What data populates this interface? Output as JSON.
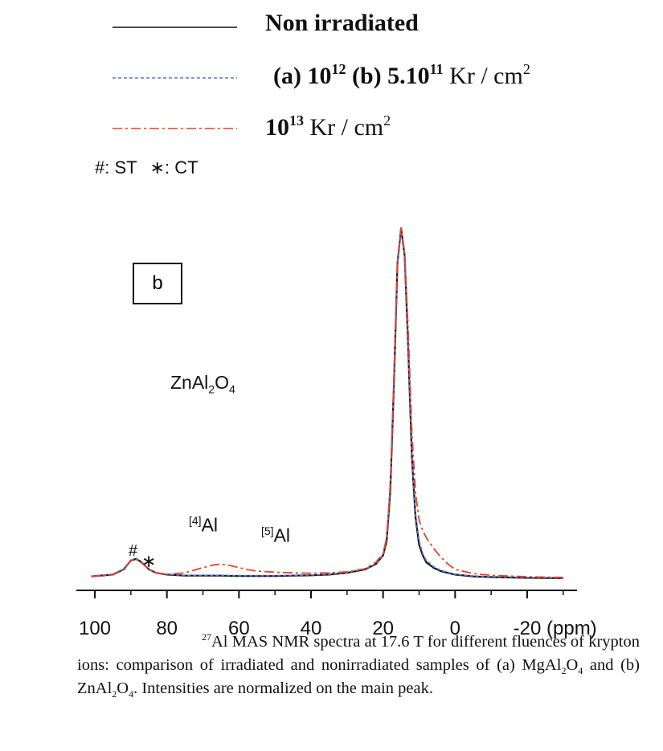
{
  "legend": [
    {
      "text": "Non irradiated",
      "color": "#111111",
      "dash": ""
    },
    {
      "pre": "(a) 10",
      "sup1": "12",
      "mid": " (b) 5.10",
      "sup2": "11",
      "post": " Kr / cm",
      "sup3": "2",
      "color": "#5577cc",
      "dash": "4,3"
    },
    {
      "pre": "10",
      "sup1": "13",
      "post": " Kr / cm",
      "sup3": "2",
      "color": "#e8412a",
      "dash": "12,4,3,4"
    }
  ],
  "marker_note": {
    "st": "#: ST",
    "ct": "∗: CT"
  },
  "panel_label": "b",
  "annotations": {
    "compound": {
      "base": "ZnAl",
      "sub1": "2",
      "mid": "O",
      "sub2": "4"
    },
    "al4": {
      "sup": "[4]",
      "text": "Al"
    },
    "al5": {
      "sup": "[5]",
      "text": "Al"
    },
    "hash": "#",
    "star": "∗"
  },
  "caption": {
    "sup": "27",
    "line1": "Al MAS NMR spectra at 17.6 T for different fluences of krypton ions:  comparison of irradiated and nonirradiated samples of (a) MgAl",
    "sub1": "2",
    "part2": "O",
    "sub2": "4",
    "part3": " and (b) ZnAl",
    "sub3": "2",
    "part4": "O",
    "sub4": "4",
    "part5": ". Intensities are normalized on the main peak."
  },
  "chart_data": {
    "type": "line",
    "xlabel": "(ppm)",
    "xlim": [
      100,
      -30
    ],
    "ylim": [
      0,
      1.0
    ],
    "x_ticks": [
      100,
      80,
      60,
      40,
      20,
      0,
      -20
    ],
    "x_tick_labels": [
      "100",
      "80",
      "60",
      "40",
      "20",
      "0",
      "-20"
    ],
    "grid": false,
    "series": [
      {
        "name": "Non irradiated",
        "color": "#111111",
        "dash": "",
        "x": [
          101,
          95,
          92,
          90,
          88.5,
          87,
          85,
          83,
          80,
          75,
          70,
          65,
          60,
          55,
          50,
          45,
          40,
          35,
          30,
          25,
          22,
          20,
          19,
          18,
          17,
          16,
          15,
          14,
          13,
          12,
          11,
          10,
          9,
          8,
          6,
          4,
          0,
          -5,
          -10,
          -20,
          -30
        ],
        "y": [
          0.01,
          0.015,
          0.03,
          0.055,
          0.06,
          0.05,
          0.03,
          0.02,
          0.015,
          0.012,
          0.012,
          0.012,
          0.011,
          0.011,
          0.011,
          0.012,
          0.013,
          0.015,
          0.02,
          0.03,
          0.045,
          0.07,
          0.11,
          0.25,
          0.55,
          0.9,
          1.0,
          0.92,
          0.65,
          0.35,
          0.18,
          0.1,
          0.07,
          0.05,
          0.035,
          0.025,
          0.015,
          0.01,
          0.008,
          0.006,
          0.005
        ]
      },
      {
        "name": "(a) 10^12 (b) 5.10^11 Kr / cm^2",
        "color": "#5577cc",
        "dash": "4,3",
        "x": [
          101,
          95,
          92,
          90,
          88.5,
          87,
          85,
          83,
          80,
          75,
          70,
          65,
          60,
          55,
          50,
          45,
          40,
          35,
          30,
          25,
          22,
          20,
          19,
          18,
          17,
          16,
          15,
          14,
          13,
          12,
          11,
          10,
          9,
          8,
          6,
          4,
          0,
          -5,
          -10,
          -20,
          -30
        ],
        "y": [
          0.01,
          0.016,
          0.032,
          0.056,
          0.061,
          0.05,
          0.03,
          0.02,
          0.016,
          0.013,
          0.013,
          0.013,
          0.012,
          0.012,
          0.012,
          0.013,
          0.014,
          0.016,
          0.021,
          0.031,
          0.046,
          0.072,
          0.115,
          0.26,
          0.56,
          0.9,
          1.0,
          0.92,
          0.66,
          0.36,
          0.19,
          0.11,
          0.075,
          0.055,
          0.038,
          0.027,
          0.016,
          0.011,
          0.009,
          0.007,
          0.006
        ]
      },
      {
        "name": "10^13 Kr / cm^2",
        "color": "#e8412a",
        "dash": "12,4,3,4",
        "x": [
          101,
          95,
          92,
          90,
          88.5,
          87,
          85,
          83,
          80,
          75,
          70,
          67,
          65,
          62,
          58,
          55,
          50,
          45,
          40,
          35,
          30,
          25,
          22,
          20,
          19,
          18,
          17,
          16,
          15,
          14,
          13,
          12,
          11,
          10,
          9,
          8,
          6,
          4,
          2,
          0,
          -5,
          -10,
          -20,
          -30
        ],
        "y": [
          0.01,
          0.015,
          0.03,
          0.054,
          0.058,
          0.048,
          0.03,
          0.02,
          0.016,
          0.02,
          0.035,
          0.043,
          0.045,
          0.04,
          0.03,
          0.025,
          0.022,
          0.02,
          0.019,
          0.02,
          0.023,
          0.032,
          0.05,
          0.075,
          0.12,
          0.27,
          0.57,
          0.9,
          1.0,
          0.93,
          0.7,
          0.42,
          0.25,
          0.17,
          0.14,
          0.12,
          0.09,
          0.065,
          0.045,
          0.03,
          0.018,
          0.013,
          0.009,
          0.007
        ]
      }
    ]
  }
}
